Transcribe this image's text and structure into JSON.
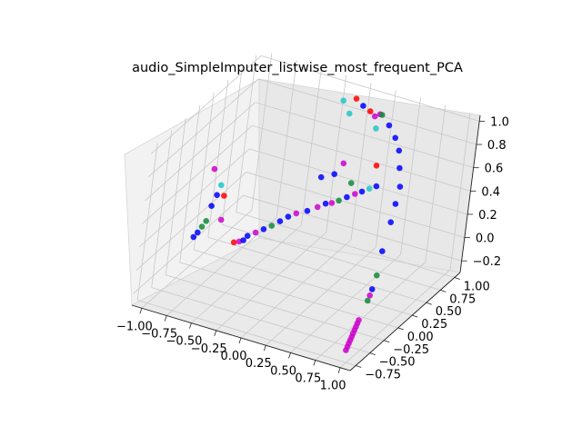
{
  "chart_data": {
    "type": "scatter",
    "projection": "3d",
    "title": "audio_SimpleImputer_listwise_most_frequent_PCA",
    "xlabel": "",
    "ylabel": "",
    "zlabel": "",
    "grid": true,
    "xlim": [
      -1.1,
      1.1
    ],
    "ylim": [
      -0.85,
      1.1
    ],
    "zlim": [
      -0.3,
      1.05
    ],
    "xticks": [
      "−1.00",
      "−0.75",
      "−0.50",
      "−0.25",
      "0.00",
      "0.25",
      "0.50",
      "0.75",
      "1.00"
    ],
    "yticks": [
      "−0.75",
      "−0.50",
      "−0.25",
      "0.00",
      "0.25",
      "0.50",
      "0.75",
      "1.00"
    ],
    "zticks": [
      "−0.2",
      "0.0",
      "0.2",
      "0.4",
      "0.6",
      "0.8",
      "1.0"
    ],
    "colors": {
      "blue": "#0000ff",
      "red": "#ff0000",
      "cyan": "#1fc7c7",
      "green": "#108a3a",
      "magenta": "#cc00cc"
    },
    "points": [
      {
        "x": -0.95,
        "y": -0.1,
        "z": 0.0,
        "c": "blue"
      },
      {
        "x": -0.94,
        "y": -0.05,
        "z": 0.02,
        "c": "blue"
      },
      {
        "x": -0.93,
        "y": 0.0,
        "z": 0.05,
        "c": "green"
      },
      {
        "x": -0.92,
        "y": 0.05,
        "z": 0.08,
        "c": "green"
      },
      {
        "x": -0.92,
        "y": 0.12,
        "z": 0.18,
        "c": "blue"
      },
      {
        "x": -0.91,
        "y": 0.18,
        "z": 0.25,
        "c": "blue"
      },
      {
        "x": -0.9,
        "y": 0.22,
        "z": 0.32,
        "c": "cyan"
      },
      {
        "x": -1.0,
        "y": 0.25,
        "z": 0.42,
        "c": "magenta"
      },
      {
        "x": -0.8,
        "y": 0.1,
        "z": 0.1,
        "c": "magenta"
      },
      {
        "x": -0.85,
        "y": 0.2,
        "z": 0.25,
        "c": "red"
      },
      {
        "x": -0.6,
        "y": 0.0,
        "z": 0.0,
        "c": "red"
      },
      {
        "x": -0.55,
        "y": 0.0,
        "z": 0.02,
        "c": "magenta"
      },
      {
        "x": -0.52,
        "y": 0.02,
        "z": 0.03,
        "c": "blue"
      },
      {
        "x": -0.5,
        "y": 0.05,
        "z": 0.06,
        "c": "blue"
      },
      {
        "x": -0.45,
        "y": 0.1,
        "z": 0.08,
        "c": "magenta"
      },
      {
        "x": -0.4,
        "y": 0.15,
        "z": 0.1,
        "c": "blue"
      },
      {
        "x": -0.35,
        "y": 0.2,
        "z": 0.12,
        "c": "green"
      },
      {
        "x": -0.3,
        "y": 0.25,
        "z": 0.15,
        "c": "blue"
      },
      {
        "x": -0.25,
        "y": 0.3,
        "z": 0.18,
        "c": "blue"
      },
      {
        "x": -0.2,
        "y": 0.35,
        "z": 0.2,
        "c": "magenta"
      },
      {
        "x": -0.12,
        "y": 0.4,
        "z": 0.22,
        "c": "blue"
      },
      {
        "x": -0.05,
        "y": 0.45,
        "z": 0.25,
        "c": "magenta"
      },
      {
        "x": 0.0,
        "y": 0.5,
        "z": 0.27,
        "c": "blue"
      },
      {
        "x": 0.05,
        "y": 0.52,
        "z": 0.28,
        "c": "magenta"
      },
      {
        "x": 0.1,
        "y": 0.55,
        "z": 0.3,
        "c": "green"
      },
      {
        "x": 0.15,
        "y": 0.6,
        "z": 0.32,
        "c": "blue"
      },
      {
        "x": 0.2,
        "y": 0.65,
        "z": 0.34,
        "c": "magenta"
      },
      {
        "x": 0.25,
        "y": 0.68,
        "z": 0.36,
        "c": "blue"
      },
      {
        "x": 0.3,
        "y": 0.72,
        "z": 0.38,
        "c": "cyan"
      },
      {
        "x": 0.35,
        "y": 0.75,
        "z": 0.4,
        "c": "blue"
      },
      {
        "x": -0.1,
        "y": 0.55,
        "z": 0.45,
        "c": "blue"
      },
      {
        "x": 0.0,
        "y": 0.6,
        "z": 0.48,
        "c": "blue"
      },
      {
        "x": 0.15,
        "y": 0.65,
        "z": 0.42,
        "c": "green"
      },
      {
        "x": 0.1,
        "y": 0.55,
        "z": 0.62,
        "c": "magenta"
      },
      {
        "x": 0.35,
        "y": 0.7,
        "z": 0.6,
        "c": "red"
      },
      {
        "x": -0.1,
        "y": 0.8,
        "z": 1.0,
        "c": "cyan"
      },
      {
        "x": 0.0,
        "y": 0.85,
        "z": 1.02,
        "c": "red"
      },
      {
        "x": 0.05,
        "y": 0.9,
        "z": 0.95,
        "c": "blue"
      },
      {
        "x": -0.05,
        "y": 0.85,
        "z": 0.88,
        "c": "cyan"
      },
      {
        "x": 0.15,
        "y": 0.85,
        "z": 0.95,
        "c": "red"
      },
      {
        "x": 0.2,
        "y": 0.85,
        "z": 0.92,
        "c": "magenta"
      },
      {
        "x": 0.25,
        "y": 0.85,
        "z": 0.95,
        "c": "magenta"
      },
      {
        "x": 0.27,
        "y": 0.85,
        "z": 0.95,
        "c": "green"
      },
      {
        "x": 0.25,
        "y": 0.8,
        "z": 0.85,
        "c": "cyan"
      },
      {
        "x": 0.35,
        "y": 0.85,
        "z": 0.88,
        "c": "blue"
      },
      {
        "x": 0.45,
        "y": 0.8,
        "z": 0.82,
        "c": "blue"
      },
      {
        "x": 0.55,
        "y": 0.7,
        "z": 0.78,
        "c": "blue"
      },
      {
        "x": 0.65,
        "y": 0.55,
        "z": 0.72,
        "c": "blue"
      },
      {
        "x": 0.75,
        "y": 0.4,
        "z": 0.65,
        "c": "blue"
      },
      {
        "x": 0.8,
        "y": 0.25,
        "z": 0.58,
        "c": "blue"
      },
      {
        "x": 0.85,
        "y": 0.1,
        "z": 0.5,
        "c": "blue"
      },
      {
        "x": 0.9,
        "y": -0.1,
        "z": 0.35,
        "c": "blue"
      },
      {
        "x": 0.95,
        "y": -0.25,
        "z": 0.22,
        "c": "green"
      },
      {
        "x": 0.97,
        "y": -0.35,
        "z": 0.15,
        "c": "blue"
      },
      {
        "x": 0.98,
        "y": -0.4,
        "z": 0.12,
        "c": "magenta"
      },
      {
        "x": 0.99,
        "y": -0.45,
        "z": 0.1,
        "c": "green"
      },
      {
        "x": 1.0,
        "y": -0.6,
        "z": 0.0,
        "c": "magenta"
      },
      {
        "x": 1.0,
        "y": -0.62,
        "z": -0.02,
        "c": "magenta"
      },
      {
        "x": 1.0,
        "y": -0.64,
        "z": -0.04,
        "c": "magenta"
      },
      {
        "x": 1.0,
        "y": -0.66,
        "z": -0.06,
        "c": "magenta"
      },
      {
        "x": 1.0,
        "y": -0.68,
        "z": -0.08,
        "c": "magenta"
      },
      {
        "x": 1.0,
        "y": -0.7,
        "z": -0.1,
        "c": "magenta"
      },
      {
        "x": 1.0,
        "y": -0.72,
        "z": -0.12,
        "c": "magenta"
      },
      {
        "x": 1.0,
        "y": -0.74,
        "z": -0.14,
        "c": "magenta"
      },
      {
        "x": 1.0,
        "y": -0.76,
        "z": -0.16,
        "c": "magenta"
      },
      {
        "x": 1.0,
        "y": -0.78,
        "z": -0.18,
        "c": "magenta"
      }
    ]
  }
}
